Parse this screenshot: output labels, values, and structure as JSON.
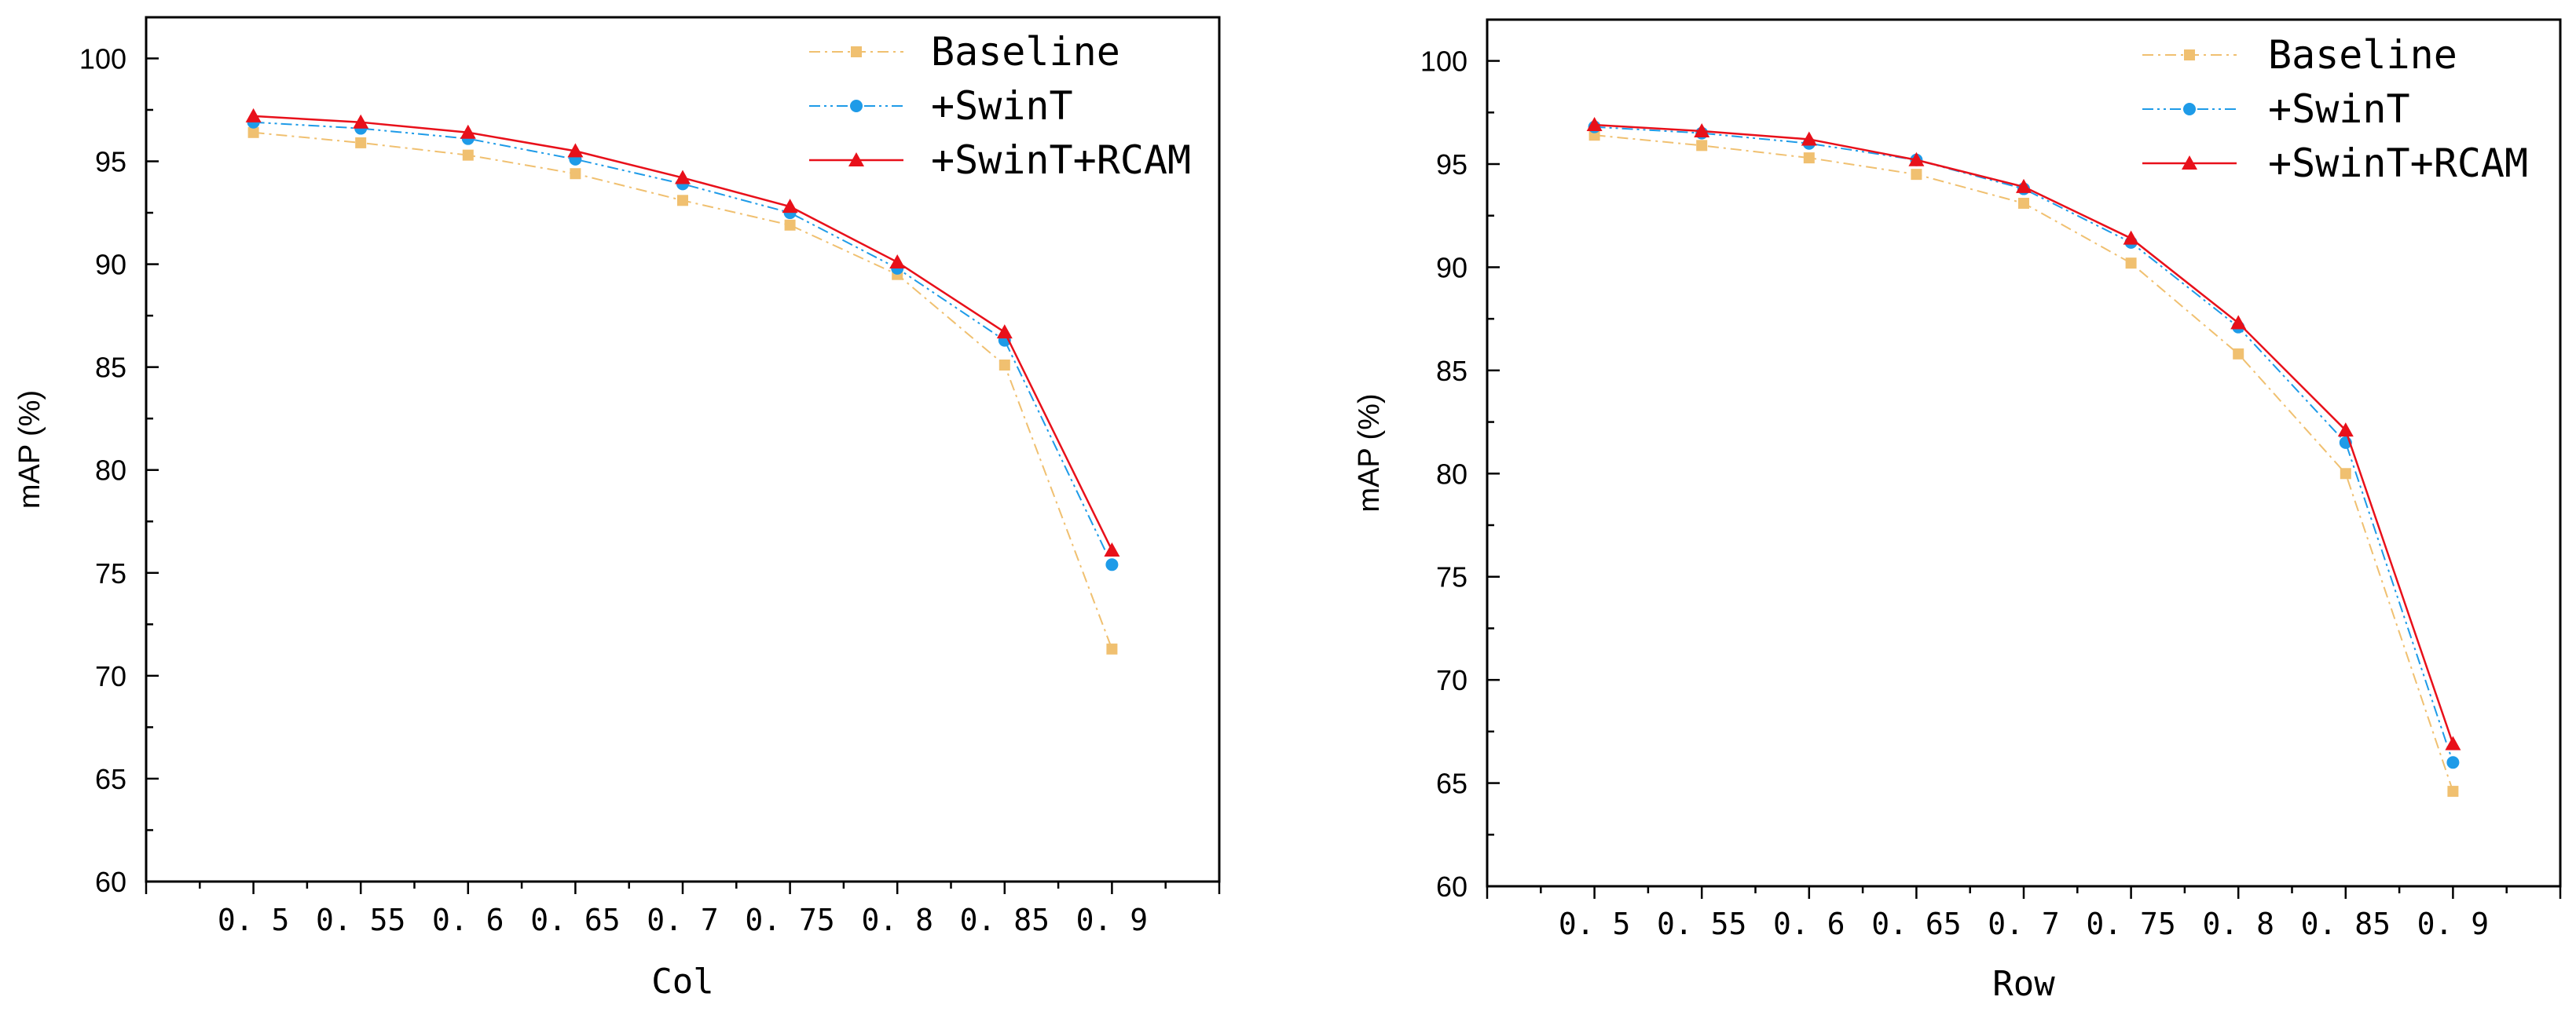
{
  "chart_data": [
    {
      "type": "line",
      "title": "",
      "xlabel": "Col",
      "ylabel": "mAP (%)",
      "categories": [
        "0.5",
        "0.55",
        "0.6",
        "0.65",
        "0.7",
        "0.75",
        "0.8",
        "0.85",
        "0.9"
      ],
      "x": [
        0.5,
        0.55,
        0.6,
        0.65,
        0.7,
        0.75,
        0.8,
        0.85,
        0.9
      ],
      "xlim": [
        0.45,
        0.95
      ],
      "ylim": [
        60,
        102
      ],
      "yticks": [
        60,
        65,
        70,
        75,
        80,
        85,
        90,
        95,
        100
      ],
      "xtick_labels": [
        "0. 5",
        "0. 55",
        "0. 6",
        "0. 65",
        "0. 7",
        "0. 75",
        "0. 8",
        "0. 85",
        "0. 9"
      ],
      "legend_position": "top-right",
      "series": [
        {
          "name": "Baseline",
          "color": "#f0c070",
          "marker": "square",
          "line": "dash-dot",
          "values": [
            96.4,
            95.9,
            95.3,
            94.4,
            93.1,
            91.9,
            89.5,
            85.1,
            71.3
          ]
        },
        {
          "name": "+SwinT",
          "color": "#1e9be8",
          "marker": "circle",
          "line": "dash-dot-dot",
          "values": [
            96.9,
            96.6,
            96.1,
            95.1,
            93.9,
            92.5,
            89.8,
            86.3,
            75.4
          ]
        },
        {
          "name": "+SwinT+RCAM",
          "color": "#e8101a",
          "marker": "triangle",
          "line": "solid",
          "values": [
            97.2,
            96.9,
            96.4,
            95.5,
            94.2,
            92.8,
            90.1,
            86.7,
            76.1
          ]
        }
      ]
    },
    {
      "type": "line",
      "title": "",
      "xlabel": "Row",
      "ylabel": "mAP (%)",
      "categories": [
        "0.5",
        "0.55",
        "0.6",
        "0.65",
        "0.7",
        "0.75",
        "0.8",
        "0.85",
        "0.9"
      ],
      "x": [
        0.5,
        0.55,
        0.6,
        0.65,
        0.7,
        0.75,
        0.8,
        0.85,
        0.9
      ],
      "xlim": [
        0.45,
        0.95
      ],
      "ylim": [
        60,
        102
      ],
      "yticks": [
        60,
        65,
        70,
        75,
        80,
        85,
        90,
        95,
        100
      ],
      "xtick_labels": [
        "0. 5",
        "0. 55",
        "0. 6",
        "0. 65",
        "0. 7",
        "0. 75",
        "0. 8",
        "0. 85",
        "0. 9"
      ],
      "legend_position": "top-right",
      "series": [
        {
          "name": "Baseline",
          "color": "#f0c070",
          "marker": "square",
          "line": "dash-dot",
          "values": [
            96.4,
            95.9,
            95.3,
            94.5,
            93.1,
            90.2,
            85.8,
            80.0,
            64.6
          ]
        },
        {
          "name": "+SwinT",
          "color": "#1e9be8",
          "marker": "circle",
          "line": "dash-dot-dot",
          "values": [
            96.8,
            96.5,
            96.0,
            95.2,
            93.8,
            91.2,
            87.1,
            81.5,
            66.0
          ]
        },
        {
          "name": "+SwinT+RCAM",
          "color": "#e8101a",
          "marker": "triangle",
          "line": "solid",
          "values": [
            96.9,
            96.6,
            96.2,
            95.2,
            93.9,
            91.4,
            87.3,
            82.1,
            66.9
          ]
        }
      ]
    }
  ]
}
